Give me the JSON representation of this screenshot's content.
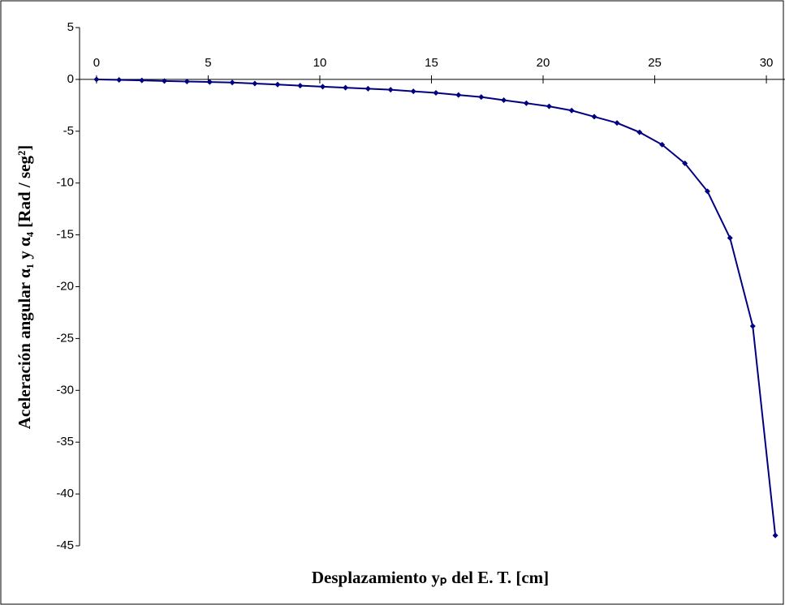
{
  "chart_data": {
    "type": "line",
    "xlabel": "Desplazamiento yₚ del E. T. [cm]",
    "ylabel": "Aceleración angular α₁ y α₄ [Rad / seg²]",
    "x": [
      0,
      1.01,
      2.03,
      3.04,
      4.05,
      5.07,
      6.08,
      7.09,
      8.11,
      9.12,
      10.13,
      11.15,
      12.16,
      13.17,
      14.19,
      15.2,
      16.21,
      17.23,
      18.24,
      19.25,
      20.27,
      21.28,
      22.29,
      23.31,
      24.32,
      25.33,
      26.35,
      27.36,
      28.37,
      29.39,
      30.4
    ],
    "series": [
      {
        "color": "#000080",
        "values": [
          0,
          -0.05,
          -0.1,
          -0.15,
          -0.2,
          -0.25,
          -0.3,
          -0.4,
          -0.5,
          -0.6,
          -0.7,
          -0.8,
          -0.9,
          -1.0,
          -1.15,
          -1.3,
          -1.5,
          -1.7,
          -2.0,
          -2.3,
          -2.6,
          -3.0,
          -3.6,
          -4.2,
          -5.1,
          -6.3,
          -8.1,
          -10.8,
          -15.3,
          -23.8,
          -44
        ]
      }
    ],
    "xlim": [
      -0.76,
      30.87
    ],
    "xticks": [
      0,
      5,
      10,
      15,
      20,
      25,
      30
    ],
    "ylim": [
      5,
      -45
    ],
    "yticks": [
      5,
      0,
      -5,
      -10,
      -15,
      -20,
      -25,
      -30,
      -35,
      -40,
      -45
    ]
  }
}
